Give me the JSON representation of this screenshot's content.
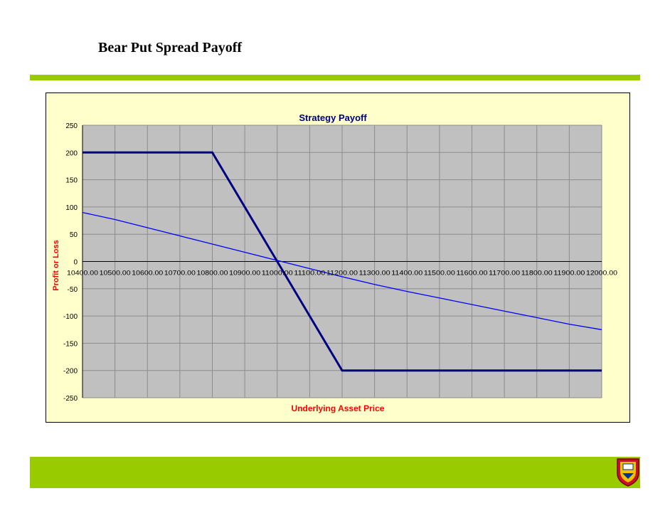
{
  "slide": {
    "title": "Bear Put Spread Payoff",
    "accent_color": "#99cc00",
    "logo_icon": "university-crest-icon"
  },
  "chart_data": {
    "type": "line",
    "title": "Strategy Payoff",
    "xlabel": "Underlying Asset Price",
    "ylabel": "Profit or Loss",
    "x_categories": [
      "10400.00",
      "10500.00",
      "10600.00",
      "10700.00",
      "10800.00",
      "10900.00",
      "11000.00",
      "11100.00",
      "11200.00",
      "11300.00",
      "11400.00",
      "11500.00",
      "11600.00",
      "11700.00",
      "11800.00",
      "11900.00",
      "12000.00"
    ],
    "x": [
      10400,
      10500,
      10600,
      10700,
      10800,
      10900,
      11000,
      11100,
      11200,
      11300,
      11400,
      11500,
      11600,
      11700,
      11800,
      11900,
      12000
    ],
    "ylim": [
      -250,
      250
    ],
    "yticks": [
      250,
      200,
      150,
      100,
      50,
      0,
      -50,
      -100,
      -150,
      -200,
      -250
    ],
    "grid": true,
    "plot_background": "#c0c0c0",
    "chart_background": "#ffffcc",
    "series": [
      {
        "color": "#000080",
        "values": [
          200,
          200,
          200,
          200,
          200,
          100,
          0,
          -100,
          -200,
          -200,
          -200,
          -200,
          -200,
          -200,
          -200,
          -200,
          -200
        ]
      },
      {
        "color": "#0000ff",
        "values": [
          90,
          77,
          62,
          47,
          32,
          17,
          2,
          -13,
          -28,
          -42,
          -55,
          -67,
          -79,
          -91,
          -103,
          -115,
          -125
        ]
      }
    ]
  }
}
